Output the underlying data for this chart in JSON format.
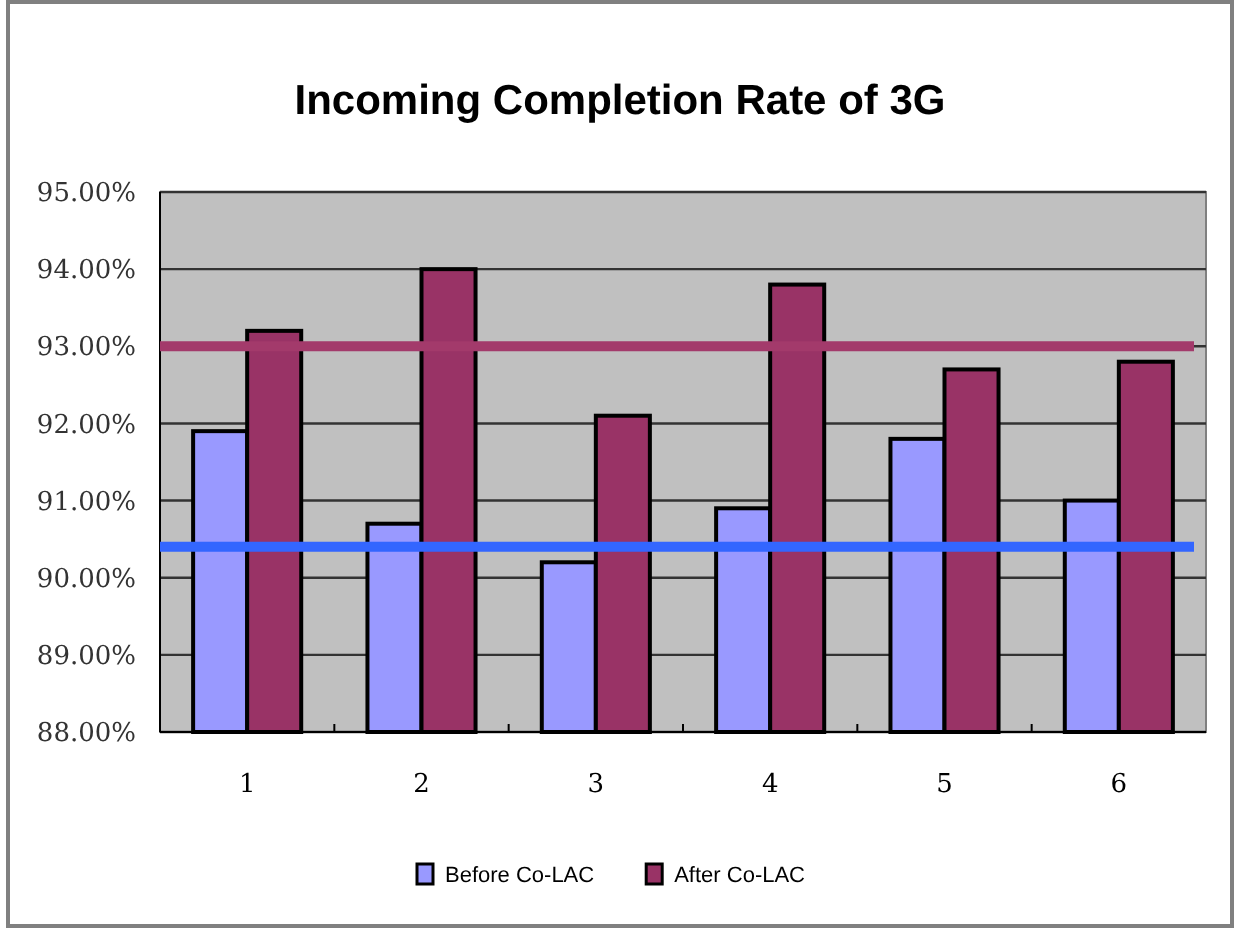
{
  "chart_data": {
    "type": "bar",
    "title": "Incoming Completion Rate of 3G",
    "categories": [
      "1",
      "2",
      "3",
      "4",
      "5",
      "6"
    ],
    "series": [
      {
        "name": "Before Co-LAC",
        "color": "#9999ff",
        "values": [
          91.9,
          90.7,
          90.2,
          90.9,
          91.8,
          91.0
        ]
      },
      {
        "name": "After Co-LAC",
        "color": "#993366",
        "values": [
          93.2,
          94.0,
          92.1,
          93.8,
          92.7,
          92.8
        ]
      }
    ],
    "ylim": [
      88,
      95
    ],
    "yticks": [
      {
        "value": 88,
        "label": "88.00%"
      },
      {
        "value": 89,
        "label": "89.00%"
      },
      {
        "value": 90,
        "label": "90.00%"
      },
      {
        "value": 91,
        "label": "91.00%"
      },
      {
        "value": 92,
        "label": "92.00%"
      },
      {
        "value": 93,
        "label": "93.00%"
      },
      {
        "value": 94,
        "label": "94.00%"
      },
      {
        "value": 95,
        "label": "95.00%"
      }
    ],
    "ref_lines": [
      {
        "axis": "y",
        "value": 93,
        "color": "#a33a6b"
      },
      {
        "axis": "y",
        "value": 90.4,
        "color": "#3366ff"
      }
    ],
    "grid": "y",
    "legend": "bottom"
  }
}
